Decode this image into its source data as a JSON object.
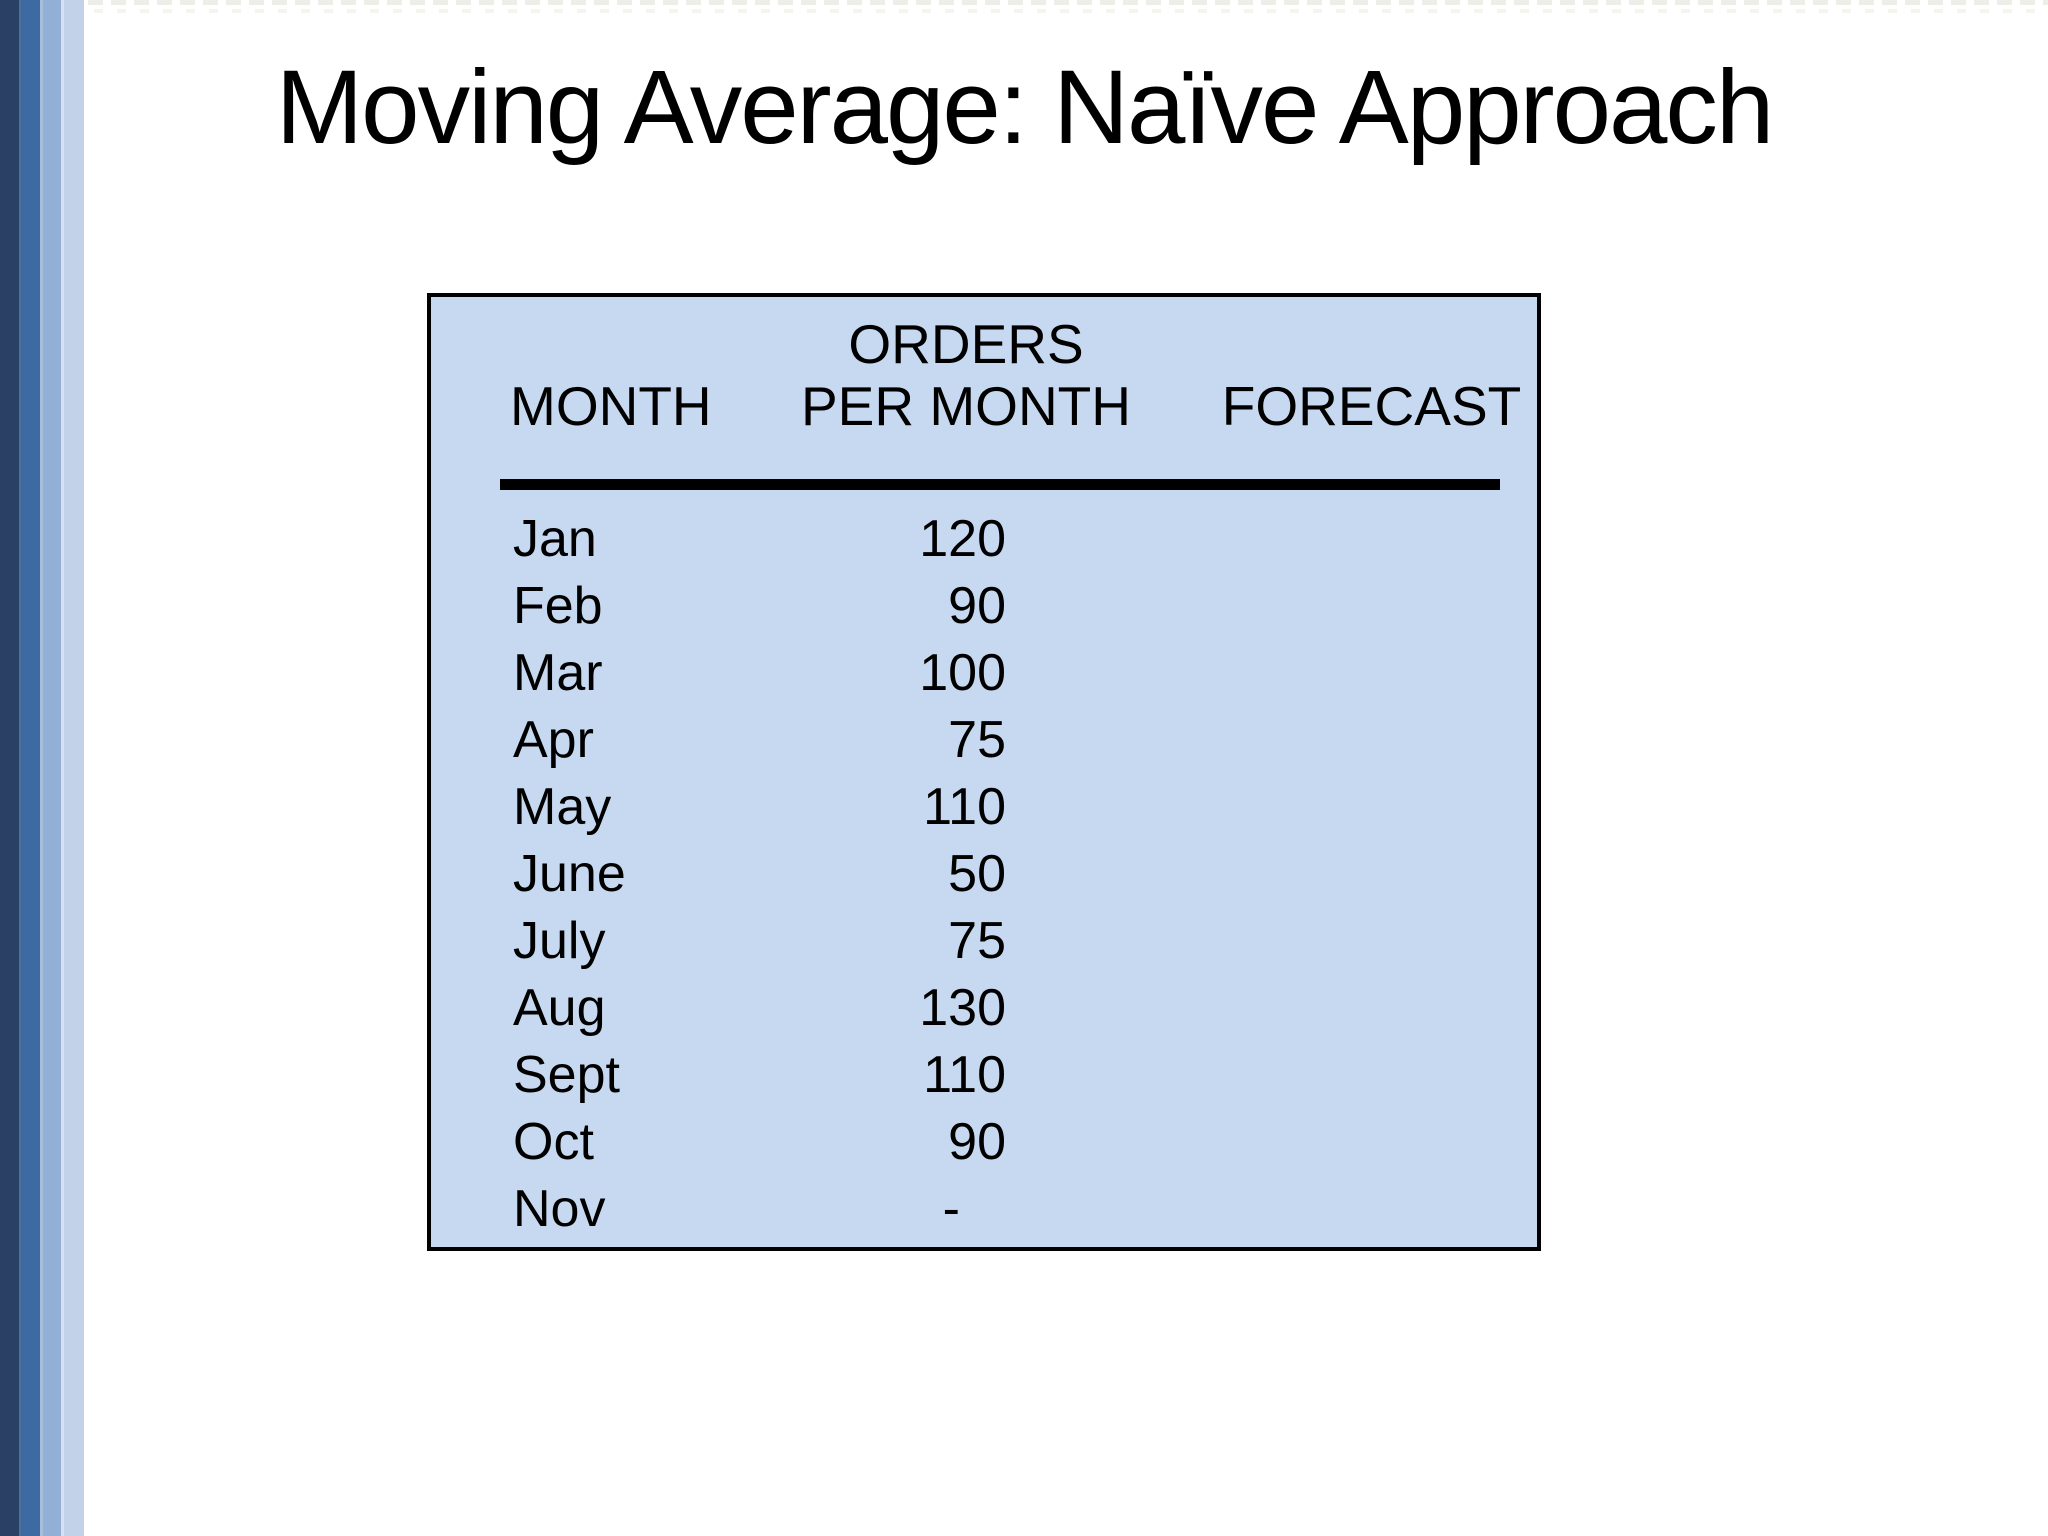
{
  "slide": {
    "title": "Moving Average: Naïve Approach"
  },
  "table": {
    "header": {
      "month": "MONTH",
      "orders_line1": "ORDERS",
      "orders_line2": "PER MONTH",
      "forecast": "FORECAST"
    },
    "rows": [
      {
        "month": "Jan",
        "orders": "120",
        "forecast": ""
      },
      {
        "month": "Feb",
        "orders": "90",
        "forecast": ""
      },
      {
        "month": "Mar",
        "orders": "100",
        "forecast": ""
      },
      {
        "month": "Apr",
        "orders": "75",
        "forecast": ""
      },
      {
        "month": "May",
        "orders": "110",
        "forecast": ""
      },
      {
        "month": "June",
        "orders": "50",
        "forecast": ""
      },
      {
        "month": "July",
        "orders": "75",
        "forecast": ""
      },
      {
        "month": "Aug",
        "orders": "130",
        "forecast": ""
      },
      {
        "month": "Sept",
        "orders": "110",
        "forecast": ""
      },
      {
        "month": "Oct",
        "orders": "90",
        "forecast": ""
      },
      {
        "month": "Nov",
        "orders": "-",
        "forecast": ""
      }
    ]
  },
  "colors": {
    "table_fill": "#c7d9f0",
    "table_border": "#000000",
    "title_text": "#000000",
    "stripe_dark": "#2b4065",
    "stripe_medium": "#3e6aa4",
    "stripe_light": "#92b0d6",
    "stripe_pale": "#c2d3e9"
  }
}
